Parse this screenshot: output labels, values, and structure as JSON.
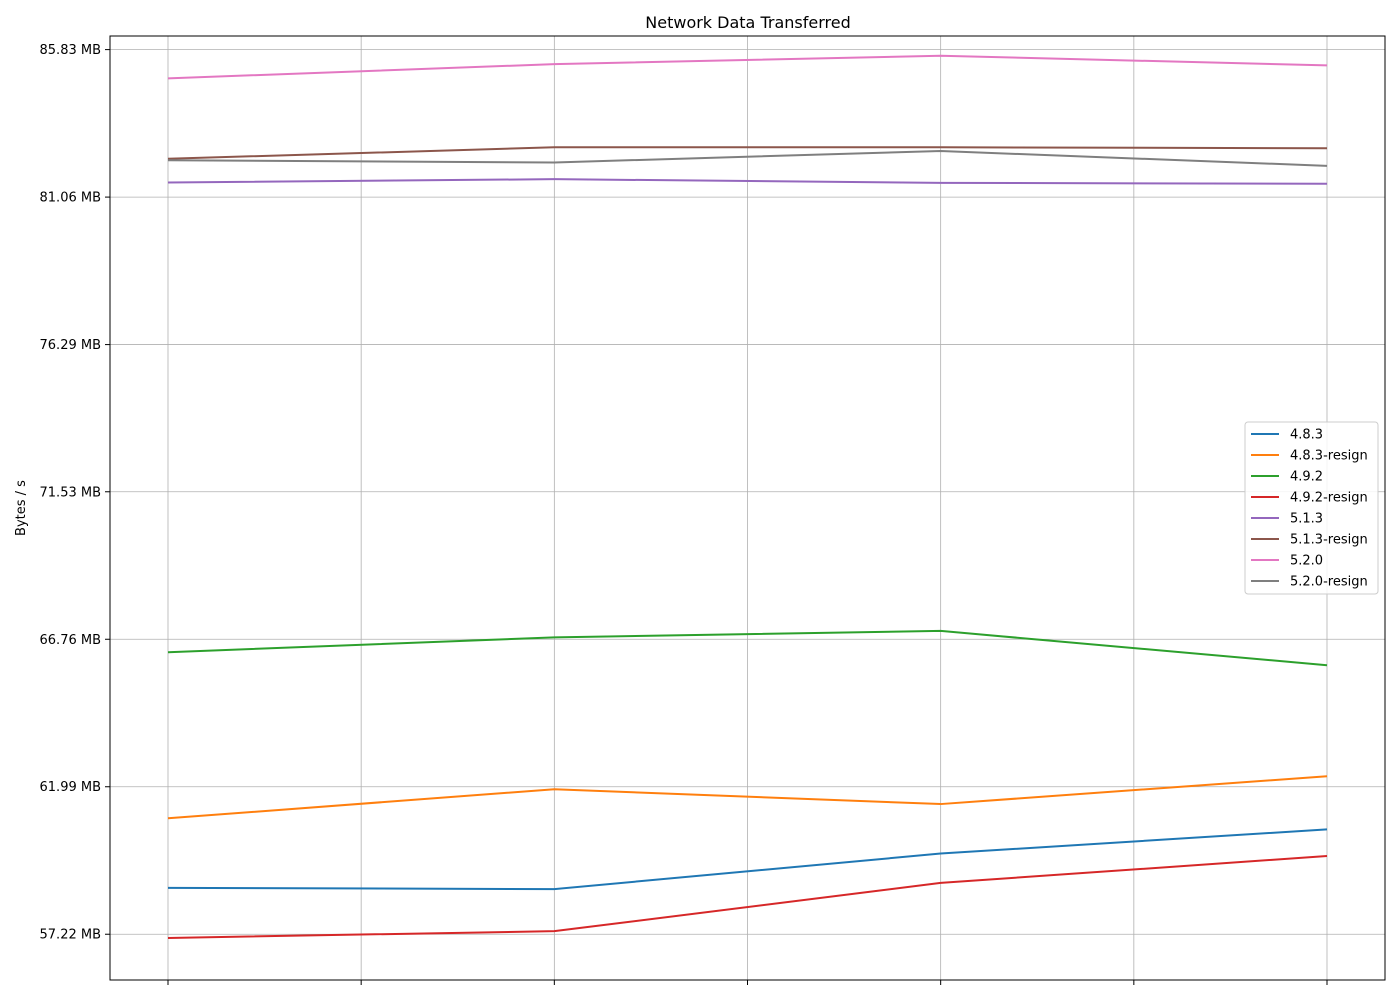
{
  "chart_data": {
    "type": "line",
    "title": "Network Data Transferred",
    "xlabel": "",
    "ylabel": "Bytes / s",
    "x": [
      0,
      1,
      2,
      3,
      4,
      5,
      6
    ],
    "ylim": [
      55.74,
      86.27
    ],
    "yticks": [
      {
        "value": 57.22,
        "label": "57.22 MB"
      },
      {
        "value": 61.99,
        "label": "61.99 MB"
      },
      {
        "value": 66.76,
        "label": "66.76 MB"
      },
      {
        "value": 71.53,
        "label": "71.53 MB"
      },
      {
        "value": 76.29,
        "label": "76.29 MB"
      },
      {
        "value": 81.06,
        "label": "81.06 MB"
      },
      {
        "value": 85.83,
        "label": "85.83 MB"
      }
    ],
    "grid": true,
    "legend_position": "center-right",
    "series": [
      {
        "name": "4.8.3",
        "color": "#1f77b4",
        "x": [
          0,
          2,
          4,
          6
        ],
        "values": [
          58.72,
          58.68,
          59.83,
          60.61
        ]
      },
      {
        "name": "4.8.3-resign",
        "color": "#ff7f0e",
        "x": [
          0,
          2,
          4,
          6
        ],
        "values": [
          60.97,
          61.91,
          61.43,
          62.33
        ]
      },
      {
        "name": "4.9.2",
        "color": "#2ca02c",
        "x": [
          0,
          2,
          4,
          6
        ],
        "values": [
          66.34,
          66.82,
          67.03,
          65.92
        ]
      },
      {
        "name": "4.9.2-resign",
        "color": "#d62728",
        "x": [
          0,
          2,
          4,
          6
        ],
        "values": [
          57.1,
          57.32,
          58.88,
          59.75
        ]
      },
      {
        "name": "5.1.3",
        "color": "#9467bd",
        "x": [
          0,
          2,
          4,
          6
        ],
        "values": [
          81.53,
          81.64,
          81.52,
          81.49
        ]
      },
      {
        "name": "5.1.3-resign",
        "color": "#8c564b",
        "x": [
          0,
          2,
          4,
          6
        ],
        "values": [
          82.3,
          82.67,
          82.67,
          82.64
        ]
      },
      {
        "name": "5.2.0",
        "color": "#e377c2",
        "x": [
          0,
          2,
          4,
          6
        ],
        "values": [
          84.9,
          85.36,
          85.63,
          85.32
        ]
      },
      {
        "name": "5.2.0-resign",
        "color": "#7f7f7f",
        "x": [
          0,
          2,
          4,
          6
        ],
        "values": [
          82.25,
          82.18,
          82.55,
          82.07
        ]
      }
    ]
  }
}
